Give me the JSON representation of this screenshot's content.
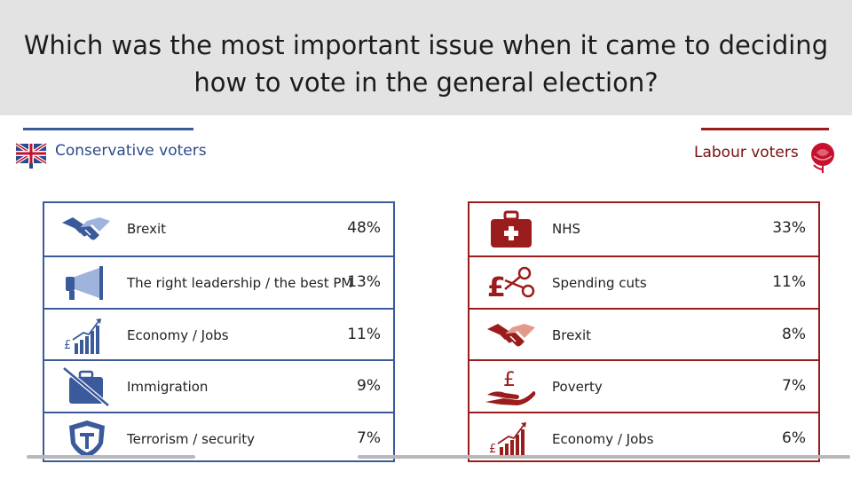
{
  "title_line1": "Which was the most important issue when it came to deciding",
  "title_line2": "how to vote in the general election?",
  "colors": {
    "conservative": "#3a5a9c",
    "labour": "#9b1c1c",
    "band": "#e3e3e3"
  },
  "chart_data": {
    "type": "table",
    "title": "Which was the most important issue when it came to deciding how to vote in the general election?",
    "groups": [
      {
        "name": "Conservative voters",
        "icons": [
          "handshake-icon",
          "megaphone-icon",
          "economy-chart-icon",
          "suitcase-crossed-icon",
          "shield-icon"
        ],
        "categories": [
          "Brexit",
          "The right leadership / the best PM",
          "Economy / Jobs",
          "Immigration",
          "Terrorism / security"
        ],
        "values": [
          48,
          13,
          11,
          9,
          7
        ],
        "labels": [
          "48%",
          "13%",
          "11%",
          "9%",
          "7%"
        ]
      },
      {
        "name": "Labour voters",
        "icons": [
          "first-aid-kit-icon",
          "pound-scissors-icon",
          "handshake-icon",
          "pound-hand-icon",
          "economy-chart-icon"
        ],
        "categories": [
          "NHS",
          "Spending cuts",
          "Brexit",
          "Poverty",
          "Economy / Jobs"
        ],
        "values": [
          33,
          11,
          8,
          7,
          6
        ],
        "labels": [
          "33%",
          "11%",
          "8%",
          "7%",
          "6%"
        ]
      }
    ]
  }
}
